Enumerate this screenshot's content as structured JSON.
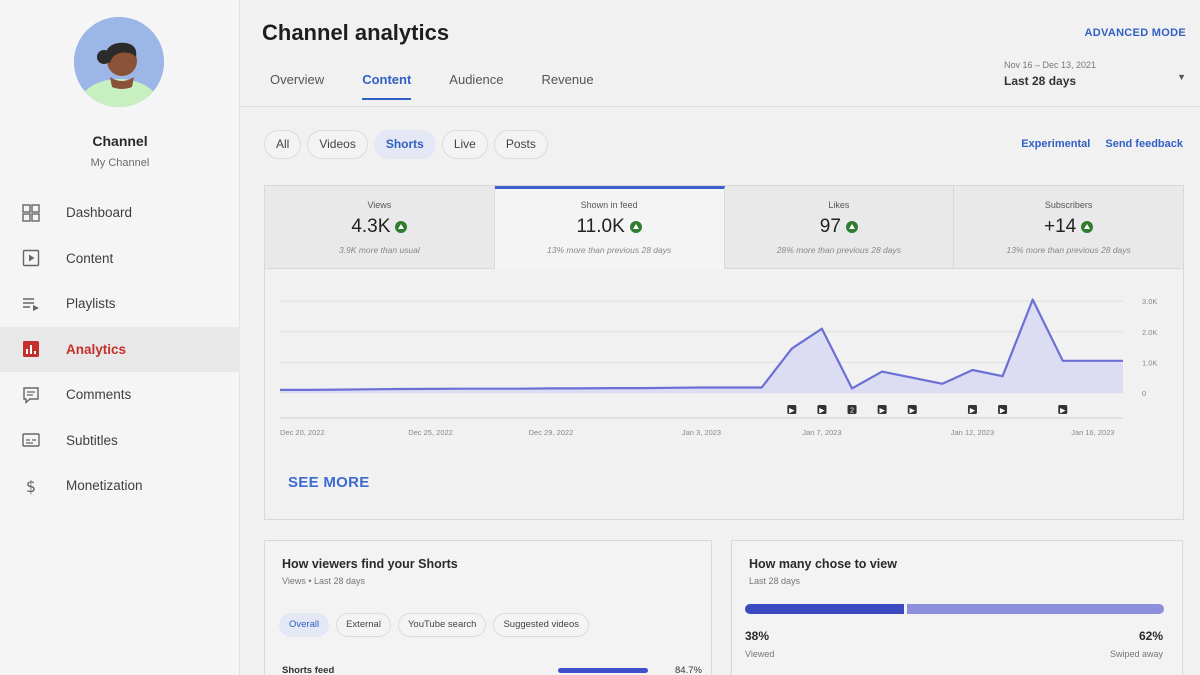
{
  "sidebar": {
    "channel_name": "Channel",
    "channel_sub": "My Channel",
    "items": [
      {
        "label": "Dashboard",
        "icon": "dashboard-icon"
      },
      {
        "label": "Content",
        "icon": "content-icon"
      },
      {
        "label": "Playlists",
        "icon": "playlists-icon"
      },
      {
        "label": "Analytics",
        "icon": "analytics-icon",
        "active": true
      },
      {
        "label": "Comments",
        "icon": "comments-icon"
      },
      {
        "label": "Subtitles",
        "icon": "subtitles-icon"
      },
      {
        "label": "Monetization",
        "icon": "monetization-icon"
      }
    ]
  },
  "header": {
    "title": "Channel analytics",
    "advanced_mode": "ADVANCED MODE",
    "tabs": [
      "Overview",
      "Content",
      "Audience",
      "Revenue"
    ],
    "active_tab": "Content",
    "date_range": "Nov 16 – Dec 13, 2021",
    "date_label": "Last 28 days"
  },
  "filters": {
    "chips": [
      "All",
      "Videos",
      "Shorts",
      "Live",
      "Posts"
    ],
    "selected": "Shorts",
    "experimental": "Experimental",
    "send_feedback": "Send feedback"
  },
  "metrics": [
    {
      "label": "Views",
      "value": "4.3K",
      "note": "3.9K more than usual"
    },
    {
      "label": "Shown in feed",
      "value": "11.0K",
      "note": "13% more than previous 28 days"
    },
    {
      "label": "Likes",
      "value": "97",
      "note": "28% more than previous 28 days"
    },
    {
      "label": "Subscribers",
      "value": "+14",
      "note": "13% more than previous 28 days"
    }
  ],
  "chart_data": {
    "type": "area",
    "x": [
      "Dec 20",
      "Dec 21",
      "Dec 22",
      "Dec 23",
      "Dec 24",
      "Dec 25",
      "Dec 26",
      "Dec 27",
      "Dec 28",
      "Dec 29",
      "Dec 30",
      "Dec 31",
      "Jan 1",
      "Jan 2",
      "Jan 3",
      "Jan 4",
      "Jan 5",
      "Jan 6",
      "Jan 7",
      "Jan 8",
      "Jan 9",
      "Jan 10",
      "Jan 11",
      "Jan 12",
      "Jan 13",
      "Jan 14",
      "Jan 15",
      "Jan 16",
      "Jan 17"
    ],
    "series": [
      {
        "values": [
          100,
          100,
          110,
          120,
          130,
          135,
          140,
          140,
          140,
          150,
          150,
          160,
          160,
          170,
          180,
          180,
          180,
          1450,
          2100,
          150,
          700,
          500,
          300,
          750,
          550,
          3050,
          1050,
          1050,
          1050
        ]
      }
    ],
    "x_tick_labels": [
      "Dec 20, 2022",
      "Dec 25, 2022",
      "Dec 29, 2022",
      "Jan 3, 2023",
      "Jan 7, 2023",
      "Jan 12, 2023",
      "Jan 16, 2023"
    ],
    "y_tick_labels": [
      "3.0K",
      "2.0K",
      "1.0K",
      "0"
    ],
    "ylim": [
      0,
      3200
    ],
    "grid": true,
    "upload_markers": [
      "Jan 6",
      "Jan 7",
      "Jan 8",
      "Jan 9",
      "Jan 10",
      "Jan 12",
      "Jan 13",
      "Jan 15"
    ],
    "marker_numbers": {
      "Jan 8": "2"
    }
  },
  "see_more": "SEE MORE",
  "find_card": {
    "title": "How viewers find your Shorts",
    "subtitle": "Views • Last 28 days",
    "chips": [
      "Overall",
      "External",
      "YouTube search",
      "Suggested videos"
    ],
    "selected": "Overall",
    "rows": [
      {
        "label": "Shorts feed",
        "value": "84.7%",
        "pct": 0.847
      }
    ]
  },
  "choose_card": {
    "title": "How many chose to view",
    "subtitle": "Last 28 days",
    "viewed_pct": "38%",
    "viewed_label": "Viewed",
    "swiped_pct": "62%",
    "swiped_label": "Swiped away",
    "viewed_fraction": 0.38
  },
  "colors": {
    "accent": "#3160c4",
    "line": "#6c6fd6",
    "active_nav": "#c4302b"
  }
}
